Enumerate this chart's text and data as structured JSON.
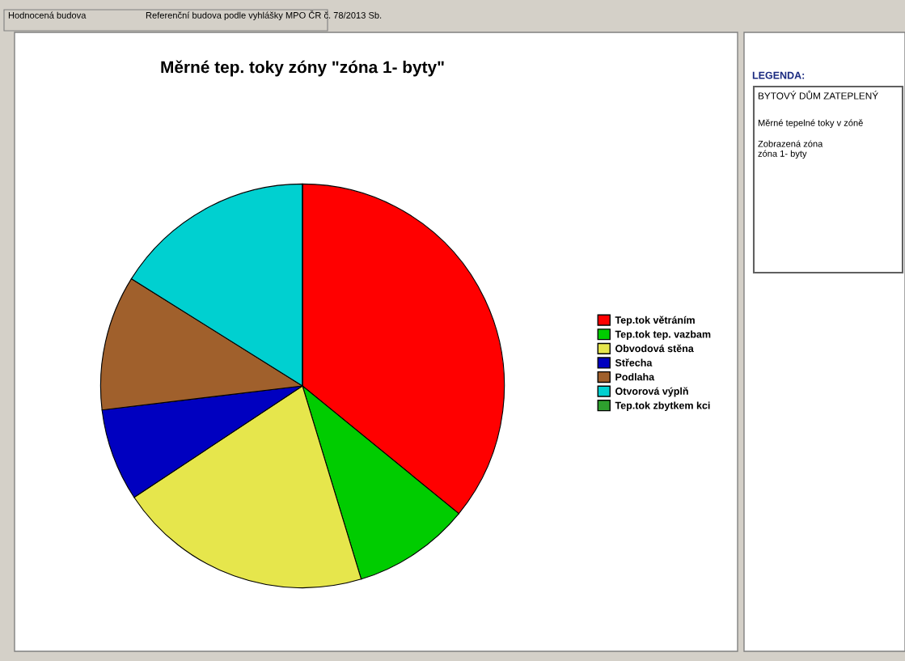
{
  "chart_data": {
    "type": "pie",
    "title": "Měrné tep. toky zóny \"zóna 1- byty\"",
    "categories": [
      "Tep.tok větráním",
      "Tep.tok tep. vazbam",
      "Obvodová stěna",
      "Střecha",
      "Podlaha",
      "Otvorová výplň",
      "Tep.tok zbytkem kci"
    ],
    "values": [
      35.9,
      9.4,
      20.4,
      7.4,
      10.8,
      16.1,
      0
    ],
    "colors": [
      "#ff0000",
      "#00cc00",
      "#e6e64c",
      "#0000c0",
      "#a0602c",
      "#00d0d0",
      "#2ea02e"
    ],
    "legend": "right",
    "annotations": [
      "Hodnocená budova",
      "Referenční budova podle vyhlášky MPO ČR č. 78/2013 Sb.",
      "LEGENDA:",
      "BYTOVÝ DŮM ZATEPLENÝ",
      "Měrné tepelné toky v zóně",
      "Zobrazená zóna\nzóna 1- byty"
    ]
  }
}
